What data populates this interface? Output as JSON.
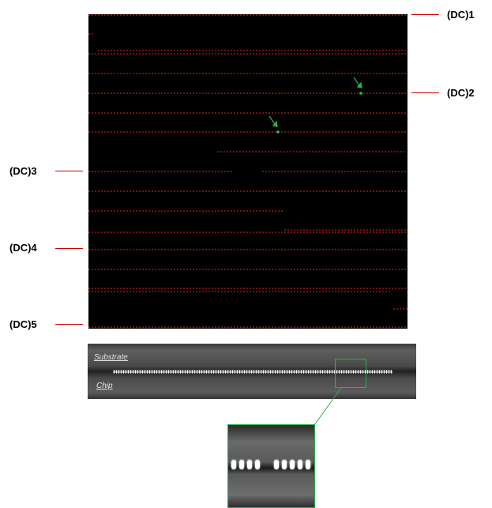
{
  "dc_labels": {
    "dc1": "(DC)1",
    "dc2": "(DC)2",
    "dc3": "(DC)3",
    "dc4": "(DC)4",
    "dc5": "(DC)5"
  },
  "cross_section": {
    "top_label": "Substrate",
    "bottom_label": "Chip"
  },
  "colors": {
    "daisy_chain_dots": "#ff2a1a",
    "defect_arrows": "#2bb34a",
    "zoom_frame": "#2bb34a",
    "leader_lines": "#cc0000"
  }
}
